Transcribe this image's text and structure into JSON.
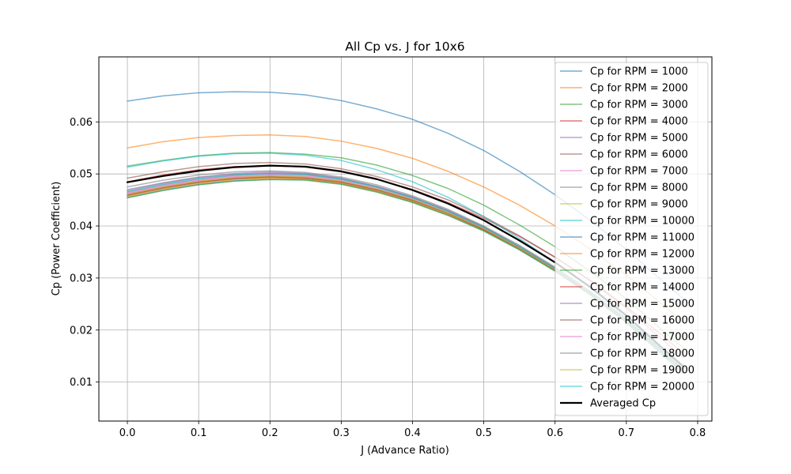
{
  "chart_data": {
    "type": "line",
    "title": "All Cp vs. J for 10x6",
    "xlabel": "J (Advance Ratio)",
    "ylabel": "Cp (Power Coefficient)",
    "xlim": [
      -0.04,
      0.82
    ],
    "ylim": [
      0.0025,
      0.0725
    ],
    "x_ticks": [
      "0.0",
      "0.1",
      "0.2",
      "0.3",
      "0.4",
      "0.5",
      "0.6",
      "0.7",
      "0.8"
    ],
    "y_ticks": [
      "0.01",
      "0.02",
      "0.03",
      "0.04",
      "0.05",
      "0.06"
    ],
    "grid": true,
    "legend_position": "upper right",
    "series": [
      {
        "name": "Cp for RPM = 1000",
        "color": "#1f77b4",
        "x": [
          0.0,
          0.05,
          0.1,
          0.15,
          0.2,
          0.25,
          0.3,
          0.35,
          0.4,
          0.45,
          0.5,
          0.55,
          0.6,
          0.65,
          0.7,
          0.75,
          0.78
        ],
        "y": [
          0.064,
          0.065,
          0.0656,
          0.0658,
          0.0657,
          0.0652,
          0.0641,
          0.0625,
          0.0605,
          0.0578,
          0.0545,
          0.0505,
          0.046,
          0.041,
          0.0355,
          0.0295,
          0.026
        ]
      },
      {
        "name": "Cp for RPM = 2000",
        "color": "#ff7f0e",
        "x": [
          0.0,
          0.05,
          0.1,
          0.15,
          0.2,
          0.25,
          0.3,
          0.35,
          0.4,
          0.45,
          0.5,
          0.55,
          0.6,
          0.65,
          0.7,
          0.75,
          0.78
        ],
        "y": [
          0.055,
          0.0562,
          0.057,
          0.0574,
          0.0575,
          0.0572,
          0.0563,
          0.0549,
          0.053,
          0.0505,
          0.0475,
          0.044,
          0.04,
          0.0355,
          0.0305,
          0.025,
          0.0215
        ]
      },
      {
        "name": "Cp for RPM = 3000",
        "color": "#2ca02c",
        "x": [
          0.0,
          0.05,
          0.1,
          0.15,
          0.2,
          0.25,
          0.3,
          0.35,
          0.4,
          0.45,
          0.5,
          0.55,
          0.6,
          0.65,
          0.7,
          0.75,
          0.78
        ],
        "y": [
          0.0515,
          0.0526,
          0.0535,
          0.054,
          0.0541,
          0.0538,
          0.0531,
          0.0517,
          0.0497,
          0.0472,
          0.044,
          0.0402,
          0.036,
          0.0312,
          0.026,
          0.02,
          0.0165
        ]
      },
      {
        "name": "Cp for RPM = 4000",
        "color": "#d62728",
        "x": [
          0.0,
          0.05,
          0.1,
          0.15,
          0.2,
          0.25,
          0.3,
          0.35,
          0.4,
          0.45,
          0.5,
          0.55,
          0.6,
          0.65,
          0.7,
          0.75,
          0.78
        ],
        "y": [
          0.0485,
          0.0498,
          0.0508,
          0.0514,
          0.0516,
          0.0513,
          0.0504,
          0.049,
          0.047,
          0.0445,
          0.0415,
          0.038,
          0.034,
          0.0295,
          0.0245,
          0.019,
          0.0155
        ]
      },
      {
        "name": "Cp for RPM = 5000",
        "color": "#9467bd",
        "x": [
          0.0,
          0.05,
          0.1,
          0.15,
          0.2,
          0.25,
          0.3,
          0.35,
          0.4,
          0.45,
          0.5,
          0.55,
          0.6,
          0.65,
          0.7,
          0.75,
          0.78
        ],
        "y": [
          0.047,
          0.0483,
          0.0494,
          0.0501,
          0.0504,
          0.0501,
          0.0492,
          0.0476,
          0.0456,
          0.043,
          0.0398,
          0.036,
          0.0318,
          0.0272,
          0.022,
          0.016,
          0.0125
        ]
      },
      {
        "name": "Cp for RPM = 6000",
        "color": "#8c564b",
        "x": [
          0.0,
          0.05,
          0.1,
          0.15,
          0.2,
          0.25,
          0.3,
          0.35,
          0.4,
          0.45,
          0.5,
          0.55,
          0.6,
          0.65,
          0.7,
          0.75,
          0.78
        ],
        "y": [
          0.0492,
          0.0504,
          0.0514,
          0.052,
          0.0522,
          0.0519,
          0.051,
          0.0495,
          0.0475,
          0.045,
          0.0418,
          0.0381,
          0.034,
          0.0294,
          0.0242,
          0.0182,
          0.0147
        ]
      },
      {
        "name": "Cp for RPM = 7000",
        "color": "#e377c2",
        "x": [
          0.0,
          0.05,
          0.1,
          0.15,
          0.2,
          0.25,
          0.3,
          0.35,
          0.4,
          0.45,
          0.5,
          0.55,
          0.6,
          0.65,
          0.7,
          0.75,
          0.78
        ],
        "y": [
          0.0462,
          0.0476,
          0.0487,
          0.0494,
          0.0497,
          0.0495,
          0.0486,
          0.0471,
          0.0451,
          0.0425,
          0.0394,
          0.0357,
          0.0315,
          0.0268,
          0.0216,
          0.0156,
          0.012
        ]
      },
      {
        "name": "Cp for RPM = 8000",
        "color": "#7f7f7f",
        "x": [
          0.0,
          0.05,
          0.1,
          0.15,
          0.2,
          0.25,
          0.3,
          0.35,
          0.4,
          0.45,
          0.5,
          0.55,
          0.6,
          0.65,
          0.7,
          0.75,
          0.78
        ],
        "y": [
          0.0475,
          0.0488,
          0.0498,
          0.0504,
          0.0506,
          0.0503,
          0.0494,
          0.0479,
          0.0458,
          0.0432,
          0.04,
          0.0363,
          0.0321,
          0.0274,
          0.0222,
          0.0162,
          0.0127
        ]
      },
      {
        "name": "Cp for RPM = 9000",
        "color": "#bcbd22",
        "x": [
          0.0,
          0.05,
          0.1,
          0.15,
          0.2,
          0.25,
          0.3,
          0.35,
          0.4,
          0.45,
          0.5,
          0.55,
          0.6,
          0.65,
          0.7,
          0.75,
          0.78
        ],
        "y": [
          0.0458,
          0.0472,
          0.0483,
          0.049,
          0.0493,
          0.0491,
          0.0483,
          0.0468,
          0.0448,
          0.0423,
          0.0393,
          0.0357,
          0.0316,
          0.027,
          0.0218,
          0.0158,
          0.0122
        ]
      },
      {
        "name": "Cp for RPM = 10000",
        "color": "#17becf",
        "x": [
          0.0,
          0.05,
          0.1,
          0.15,
          0.2,
          0.25,
          0.3,
          0.35,
          0.4,
          0.45,
          0.5,
          0.55,
          0.6,
          0.65,
          0.7,
          0.75,
          0.78
        ],
        "y": [
          0.0513,
          0.0525,
          0.0534,
          0.0539,
          0.054,
          0.0536,
          0.0526,
          0.0508,
          0.0485,
          0.0455,
          0.0418,
          0.0376,
          0.033,
          0.028,
          0.0225,
          0.0162,
          0.0125
        ]
      },
      {
        "name": "Cp for RPM = 11000",
        "color": "#1f77b4",
        "x": [
          0.0,
          0.05,
          0.1,
          0.15,
          0.2,
          0.25,
          0.3,
          0.35,
          0.4,
          0.45,
          0.5,
          0.55,
          0.6,
          0.65,
          0.7,
          0.75,
          0.78
        ],
        "y": [
          0.0455,
          0.0469,
          0.048,
          0.0487,
          0.049,
          0.0489,
          0.0481,
          0.0466,
          0.0446,
          0.0421,
          0.0391,
          0.0355,
          0.0314,
          0.0268,
          0.0215,
          0.0155,
          0.0118
        ]
      },
      {
        "name": "Cp for RPM = 12000",
        "color": "#ff7f0e",
        "x": [
          0.0,
          0.05,
          0.1,
          0.15,
          0.2,
          0.25,
          0.3,
          0.35,
          0.4,
          0.45,
          0.5,
          0.55,
          0.6,
          0.65,
          0.7,
          0.75,
          0.78
        ],
        "y": [
          0.0457,
          0.0471,
          0.0482,
          0.0489,
          0.0492,
          0.049,
          0.0482,
          0.0467,
          0.0447,
          0.0422,
          0.0392,
          0.0356,
          0.0315,
          0.0269,
          0.0216,
          0.0156,
          0.0119
        ]
      },
      {
        "name": "Cp for RPM = 13000",
        "color": "#2ca02c",
        "x": [
          0.0,
          0.05,
          0.1,
          0.15,
          0.2,
          0.25,
          0.3,
          0.35,
          0.4,
          0.45,
          0.5,
          0.55,
          0.6,
          0.65,
          0.7,
          0.75,
          0.78
        ],
        "y": [
          0.0454,
          0.0468,
          0.0479,
          0.0486,
          0.0489,
          0.0488,
          0.048,
          0.0465,
          0.0445,
          0.042,
          0.039,
          0.0354,
          0.0313,
          0.0267,
          0.0214,
          0.0153,
          0.0116
        ]
      },
      {
        "name": "Cp for RPM = 14000",
        "color": "#d62728",
        "x": [
          0.0,
          0.05,
          0.1,
          0.15,
          0.2,
          0.25,
          0.3,
          0.35,
          0.4,
          0.45,
          0.5,
          0.55,
          0.6,
          0.65,
          0.7,
          0.75,
          0.78
        ],
        "y": [
          0.046,
          0.0474,
          0.0485,
          0.0492,
          0.0495,
          0.0493,
          0.0485,
          0.047,
          0.045,
          0.0425,
          0.0394,
          0.0358,
          0.0317,
          0.027,
          0.0218,
          0.0157,
          0.0121
        ]
      },
      {
        "name": "Cp for RPM = 15000",
        "color": "#9467bd",
        "x": [
          0.0,
          0.05,
          0.1,
          0.15,
          0.2,
          0.25,
          0.3,
          0.35,
          0.4,
          0.45,
          0.5,
          0.55,
          0.6,
          0.65,
          0.7,
          0.75,
          0.78
        ],
        "y": [
          0.0465,
          0.0479,
          0.049,
          0.0497,
          0.05,
          0.0498,
          0.0489,
          0.0474,
          0.0454,
          0.0428,
          0.0397,
          0.036,
          0.0318,
          0.0271,
          0.0219,
          0.0158,
          0.0122
        ]
      },
      {
        "name": "Cp for RPM = 16000",
        "color": "#8c564b",
        "x": [
          0.0,
          0.05,
          0.1,
          0.15,
          0.2,
          0.25,
          0.3,
          0.35,
          0.4,
          0.45,
          0.5,
          0.55,
          0.6,
          0.65,
          0.7,
          0.75,
          0.78
        ],
        "y": [
          0.0459,
          0.0473,
          0.0484,
          0.0491,
          0.0494,
          0.0492,
          0.0484,
          0.0469,
          0.0449,
          0.0424,
          0.0393,
          0.0357,
          0.0316,
          0.0269,
          0.0217,
          0.0156,
          0.012
        ]
      },
      {
        "name": "Cp for RPM = 17000",
        "color": "#e377c2",
        "x": [
          0.0,
          0.05,
          0.1,
          0.15,
          0.2,
          0.25,
          0.3,
          0.35,
          0.4,
          0.45,
          0.5,
          0.55,
          0.6,
          0.65,
          0.7,
          0.75,
          0.78
        ],
        "y": [
          0.0463,
          0.0477,
          0.0488,
          0.0495,
          0.0498,
          0.0496,
          0.0487,
          0.0472,
          0.0452,
          0.0426,
          0.0395,
          0.0358,
          0.0316,
          0.0269,
          0.0217,
          0.0156,
          0.012
        ]
      },
      {
        "name": "Cp for RPM = 18000",
        "color": "#7f7f7f",
        "x": [
          0.0,
          0.05,
          0.1,
          0.15,
          0.2,
          0.25,
          0.3,
          0.35,
          0.4,
          0.45,
          0.5,
          0.55,
          0.6,
          0.65,
          0.7,
          0.75,
          0.78
        ],
        "y": [
          0.0468,
          0.0482,
          0.0493,
          0.0499,
          0.0502,
          0.05,
          0.0491,
          0.0476,
          0.0455,
          0.0429,
          0.0398,
          0.0361,
          0.0319,
          0.0272,
          0.022,
          0.0159,
          0.0123
        ]
      },
      {
        "name": "Cp for RPM = 19000",
        "color": "#bcbd22",
        "x": [
          0.0,
          0.05,
          0.1,
          0.15,
          0.2,
          0.25,
          0.3,
          0.35,
          0.4,
          0.45,
          0.5,
          0.55,
          0.6,
          0.65,
          0.7,
          0.75,
          0.78
        ],
        "y": [
          0.0461,
          0.0475,
          0.0486,
          0.0493,
          0.0496,
          0.0494,
          0.0486,
          0.0471,
          0.0451,
          0.0425,
          0.0395,
          0.0358,
          0.0317,
          0.027,
          0.0217,
          0.0156,
          0.0119
        ]
      },
      {
        "name": "Cp for RPM = 20000",
        "color": "#17becf",
        "x": [
          0.0,
          0.05,
          0.1,
          0.15,
          0.2,
          0.25,
          0.3,
          0.35,
          0.4,
          0.45,
          0.5,
          0.55,
          0.6,
          0.65,
          0.7,
          0.75,
          0.78
        ],
        "y": [
          0.0466,
          0.048,
          0.0491,
          0.0498,
          0.0501,
          0.0499,
          0.049,
          0.0475,
          0.0454,
          0.0428,
          0.0397,
          0.036,
          0.0318,
          0.0271,
          0.0218,
          0.0157,
          0.0121
        ]
      },
      {
        "name": "Averaged Cp",
        "color": "#000000",
        "x": [
          0.0,
          0.05,
          0.1,
          0.15,
          0.2,
          0.25,
          0.3,
          0.35,
          0.4,
          0.45,
          0.5,
          0.55,
          0.6,
          0.65,
          0.7,
          0.75,
          0.78
        ],
        "y": [
          0.0484,
          0.0496,
          0.0506,
          0.0513,
          0.0516,
          0.0514,
          0.0505,
          0.049,
          0.0469,
          0.0443,
          0.0411,
          0.0372,
          0.033,
          0.0282,
          0.0228,
          0.0166,
          0.013
        ]
      }
    ]
  }
}
